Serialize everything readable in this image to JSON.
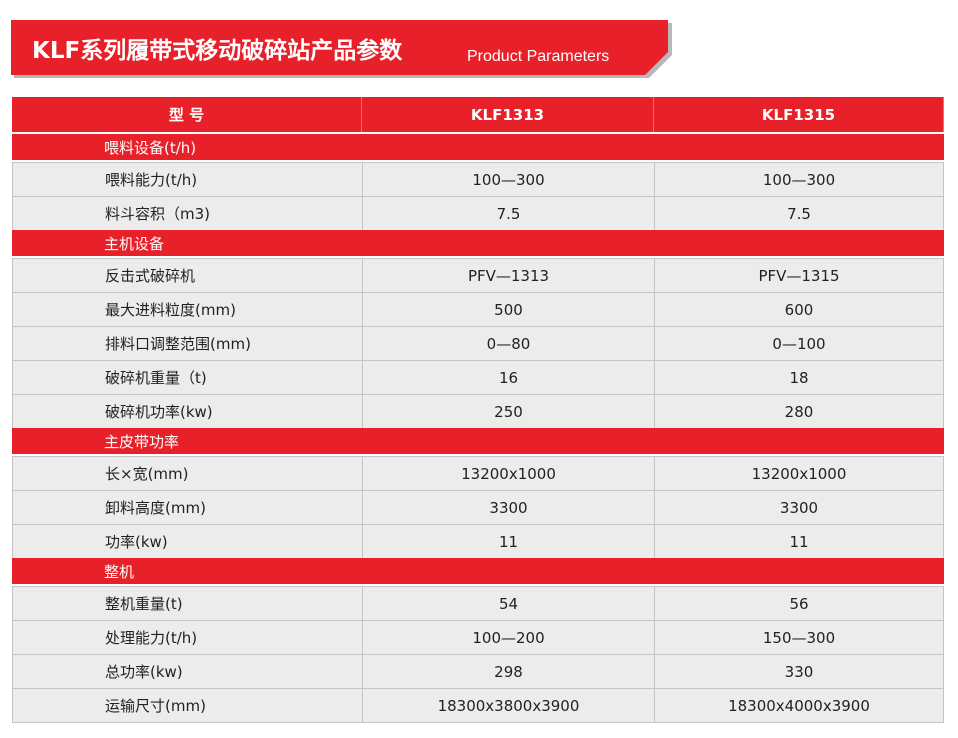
{
  "header": {
    "title": "KLF系列履带式移动破碎站产品参数",
    "subtitle": "Product Parameters"
  },
  "table": {
    "columns": [
      "型 号",
      "KLF1313",
      "KLF1315"
    ],
    "sections": [
      {
        "title": "喂料设备(t/h)",
        "rows": [
          [
            "喂料能力(t/h)",
            "100—300",
            "100—300"
          ],
          [
            "料斗容积（m3)",
            "7.5",
            "7.5"
          ]
        ]
      },
      {
        "title": "主机设备",
        "rows": [
          [
            "反击式破碎机",
            "PFV—1313",
            "PFV—1315"
          ],
          [
            "最大进料粒度(mm)",
            "500",
            "600"
          ],
          [
            "排料口调整范围(mm)",
            "0—80",
            "0—100"
          ],
          [
            "破碎机重量（t)",
            "16",
            "18"
          ],
          [
            "破碎机功率(kw)",
            "250",
            "280"
          ]
        ]
      },
      {
        "title": "主皮带功率",
        "rows": [
          [
            "长×宽(mm)",
            "13200x1000",
            "13200x1000"
          ],
          [
            "卸料高度(mm)",
            "3300",
            "3300"
          ],
          [
            "功率(kw)",
            "11",
            "11"
          ]
        ]
      },
      {
        "title": "整机",
        "rows": [
          [
            "整机重量(t)",
            "54",
            "56"
          ],
          [
            "处理能力(t/h)",
            "100—200",
            "150—300"
          ],
          [
            "总功率(kw)",
            "298",
            "330"
          ],
          [
            "运输尺寸(mm)",
            "18300x3800x3900",
            "18300x4000x3900"
          ]
        ]
      }
    ]
  }
}
